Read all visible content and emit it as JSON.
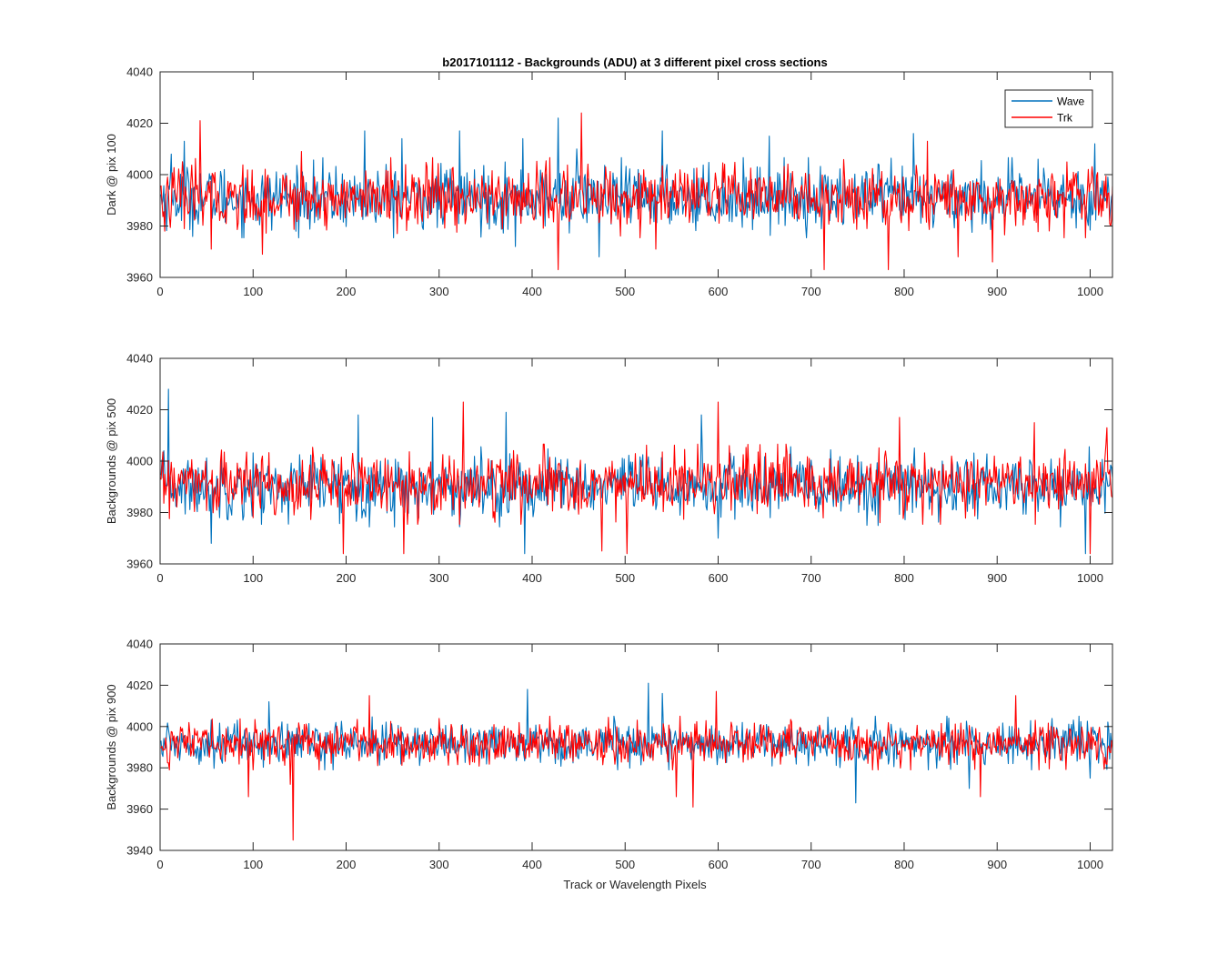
{
  "title": "b2017101112 - Backgrounds (ADU) at 3 different pixel cross sections",
  "xlabel": "Track or Wavelength Pixels",
  "legend": {
    "placement": "top-right of first panel",
    "entries": [
      {
        "label": "Wave",
        "color": "#0072BD"
      },
      {
        "label": "Trk",
        "color": "#FF0000"
      }
    ]
  },
  "chart_data": [
    {
      "type": "line",
      "ylabel": "Dark @ pix 100",
      "xlim": [
        0,
        1024
      ],
      "ylim": [
        3960,
        4040
      ],
      "xticks": [
        0,
        100,
        200,
        300,
        400,
        500,
        600,
        700,
        800,
        900,
        1000
      ],
      "yticks": [
        3960,
        3980,
        4000,
        4020,
        4040
      ],
      "grid": false,
      "series": [
        {
          "name": "Wave",
          "color": "#0072BD",
          "mean": 3991,
          "spread": 6,
          "spikes": [
            [
              12,
              4008
            ],
            [
              26,
              4013
            ],
            [
              220,
              4017
            ],
            [
              260,
              4014
            ],
            [
              322,
              4017
            ],
            [
              382,
              3972
            ],
            [
              390,
              4014
            ],
            [
              428,
              4022
            ],
            [
              448,
              4010
            ],
            [
              472,
              3968
            ],
            [
              540,
              4017
            ],
            [
              655,
              4015
            ],
            [
              810,
              4016
            ],
            [
              1005,
              4012
            ]
          ]
        },
        {
          "name": "Trk",
          "color": "#FF0000",
          "mean": 3991,
          "spread": 6,
          "spikes": [
            [
              5,
              3978
            ],
            [
              43,
              4021
            ],
            [
              55,
              3971
            ],
            [
              110,
              3969
            ],
            [
              152,
              4009
            ],
            [
              372,
              3984
            ],
            [
              428,
              3963
            ],
            [
              453,
              4024
            ],
            [
              533,
              3971
            ],
            [
              714,
              3963
            ],
            [
              783,
              3963
            ],
            [
              825,
              4013
            ],
            [
              858,
              3968
            ],
            [
              895,
              3966
            ]
          ]
        }
      ]
    },
    {
      "type": "line",
      "ylabel": "Backgrounds @ pix 500",
      "xlim": [
        0,
        1024
      ],
      "ylim": [
        3960,
        4040
      ],
      "xticks": [
        0,
        100,
        200,
        300,
        400,
        500,
        600,
        700,
        800,
        900,
        1000
      ],
      "yticks": [
        3960,
        3980,
        4000,
        4020,
        4040
      ],
      "grid": false,
      "series": [
        {
          "name": "Wave",
          "color": "#0072BD",
          "mean": 3990,
          "spread": 6,
          "spikes": [
            [
              9,
              4028
            ],
            [
              55,
              3968
            ],
            [
              213,
              4018
            ],
            [
              293,
              4017
            ],
            [
              372,
              4019
            ],
            [
              392,
              3964
            ],
            [
              582,
              4018
            ],
            [
              600,
              3970
            ],
            [
              760,
              3975
            ],
            [
              995,
              3964
            ]
          ]
        },
        {
          "name": "Trk",
          "color": "#FF0000",
          "mean": 3991,
          "spread": 6,
          "spikes": [
            [
              197,
              3964
            ],
            [
              262,
              3964
            ],
            [
              326,
              4023
            ],
            [
              475,
              3965
            ],
            [
              502,
              3964
            ],
            [
              600,
              4023
            ],
            [
              795,
              4017
            ],
            [
              940,
              4015
            ],
            [
              1000,
              3964
            ],
            [
              1018,
              4013
            ]
          ]
        }
      ]
    },
    {
      "type": "line",
      "ylabel": "Backgrounds @ pix 900",
      "xlim": [
        0,
        1024
      ],
      "ylim": [
        3940,
        4040
      ],
      "xticks": [
        0,
        100,
        200,
        300,
        400,
        500,
        600,
        700,
        800,
        900,
        1000
      ],
      "yticks": [
        3940,
        3960,
        3980,
        4000,
        4020,
        4040
      ],
      "grid": false,
      "series": [
        {
          "name": "Wave",
          "color": "#0072BD",
          "mean": 3992,
          "spread": 5,
          "spikes": [
            [
              117,
              4012
            ],
            [
              395,
              4018
            ],
            [
              525,
              4021
            ],
            [
              540,
              4016
            ],
            [
              748,
              3963
            ],
            [
              870,
              3970
            ],
            [
              1000,
              3975
            ]
          ]
        },
        {
          "name": "Trk",
          "color": "#FF0000",
          "mean": 3992,
          "spread": 5,
          "spikes": [
            [
              95,
              3966
            ],
            [
              140,
              3972
            ],
            [
              143,
              3945
            ],
            [
              225,
              4015
            ],
            [
              555,
              3966
            ],
            [
              573,
              3961
            ],
            [
              598,
              4017
            ],
            [
              882,
              3966
            ],
            [
              920,
              4015
            ]
          ]
        }
      ]
    }
  ]
}
